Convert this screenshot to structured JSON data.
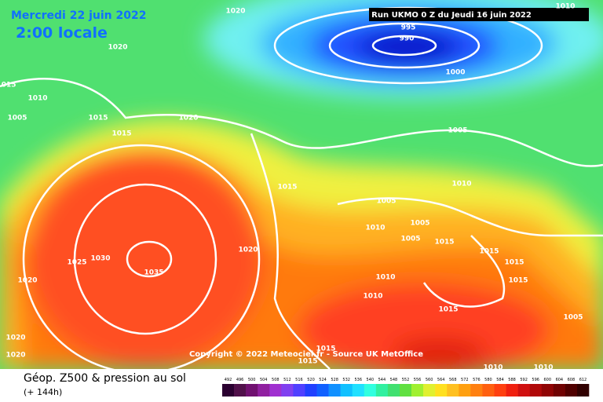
{
  "header": {
    "date": "Mercredi 22 juin 2022",
    "time": "2:00 locale",
    "run": "Run UKMO 0 Z du Jeudi 16 juin 2022"
  },
  "copyright": "Copyright © 2022 Meteociel.fr - Source UK MetOffice",
  "footer": {
    "title": "Géop. Z500 & pression au sol",
    "subtitle": "(+ 144h)"
  },
  "legend": [
    492,
    496,
    500,
    504,
    508,
    512,
    516,
    520,
    524,
    528,
    532,
    536,
    540,
    544,
    548,
    552,
    556,
    560,
    564,
    568,
    572,
    576,
    580,
    584,
    588,
    592,
    596,
    600,
    604,
    608,
    612
  ],
  "isobar_labels": [
    1020,
    1010,
    1020,
    1015,
    1010,
    1005,
    1015,
    1015,
    1020,
    995,
    990,
    1000,
    1005,
    1010,
    1015,
    1005,
    1010,
    1005,
    1005,
    1015,
    1020,
    1025,
    1030,
    1035,
    1020,
    1010,
    1010,
    1015,
    1015,
    1015,
    1015,
    1005,
    1020,
    1020,
    1015,
    1015,
    1010,
    1010
  ]
}
